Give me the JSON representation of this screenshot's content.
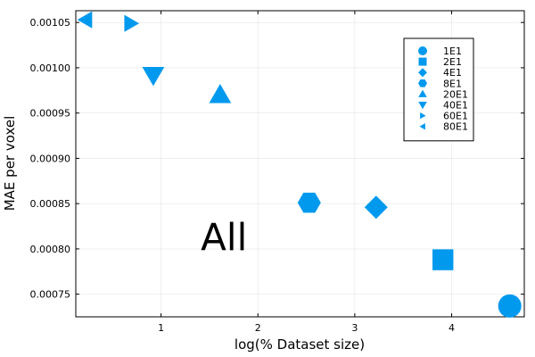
{
  "chart_data": {
    "type": "scatter",
    "title": "",
    "xlabel": "log(% Dataset size)",
    "ylabel": "MAE per voxel",
    "xlim": [
      0.12,
      4.75
    ],
    "ylim": [
      0.000725,
      0.001063
    ],
    "x_ticks": [
      1,
      2,
      3,
      4
    ],
    "x_tick_labels": [
      "1",
      "2",
      "3",
      "4"
    ],
    "y_ticks": [
      0.00075,
      0.0008,
      0.00085,
      0.0009,
      0.00095,
      0.001,
      0.00105
    ],
    "y_tick_labels": [
      "0.00075",
      "0.00080",
      "0.00085",
      "0.00090",
      "0.00095",
      "0.00100",
      "0.00105"
    ],
    "grid": true,
    "legend_position": "top-right",
    "marker_color": "#0099ee",
    "annotation": {
      "text": "All",
      "x": 1.65,
      "y": 0.000812
    },
    "series": [
      {
        "name": "1E1",
        "marker": "circle",
        "x": 4.6,
        "y": 0.000737
      },
      {
        "name": "2E1",
        "marker": "square",
        "x": 3.91,
        "y": 0.000788
      },
      {
        "name": "4E1",
        "marker": "diamond",
        "x": 3.22,
        "y": 0.000846
      },
      {
        "name": "8E1",
        "marker": "hexagon",
        "x": 2.53,
        "y": 0.000851
      },
      {
        "name": "20E1",
        "marker": "triangle-up",
        "x": 1.61,
        "y": 0.00097
      },
      {
        "name": "40E1",
        "marker": "triangle-down",
        "x": 0.92,
        "y": 0.000992
      },
      {
        "name": "60E1",
        "marker": "triangle-right",
        "x": 0.69,
        "y": 0.001049
      },
      {
        "name": "80E1",
        "marker": "triangle-left",
        "x": 0.22,
        "y": 0.001053
      }
    ]
  }
}
